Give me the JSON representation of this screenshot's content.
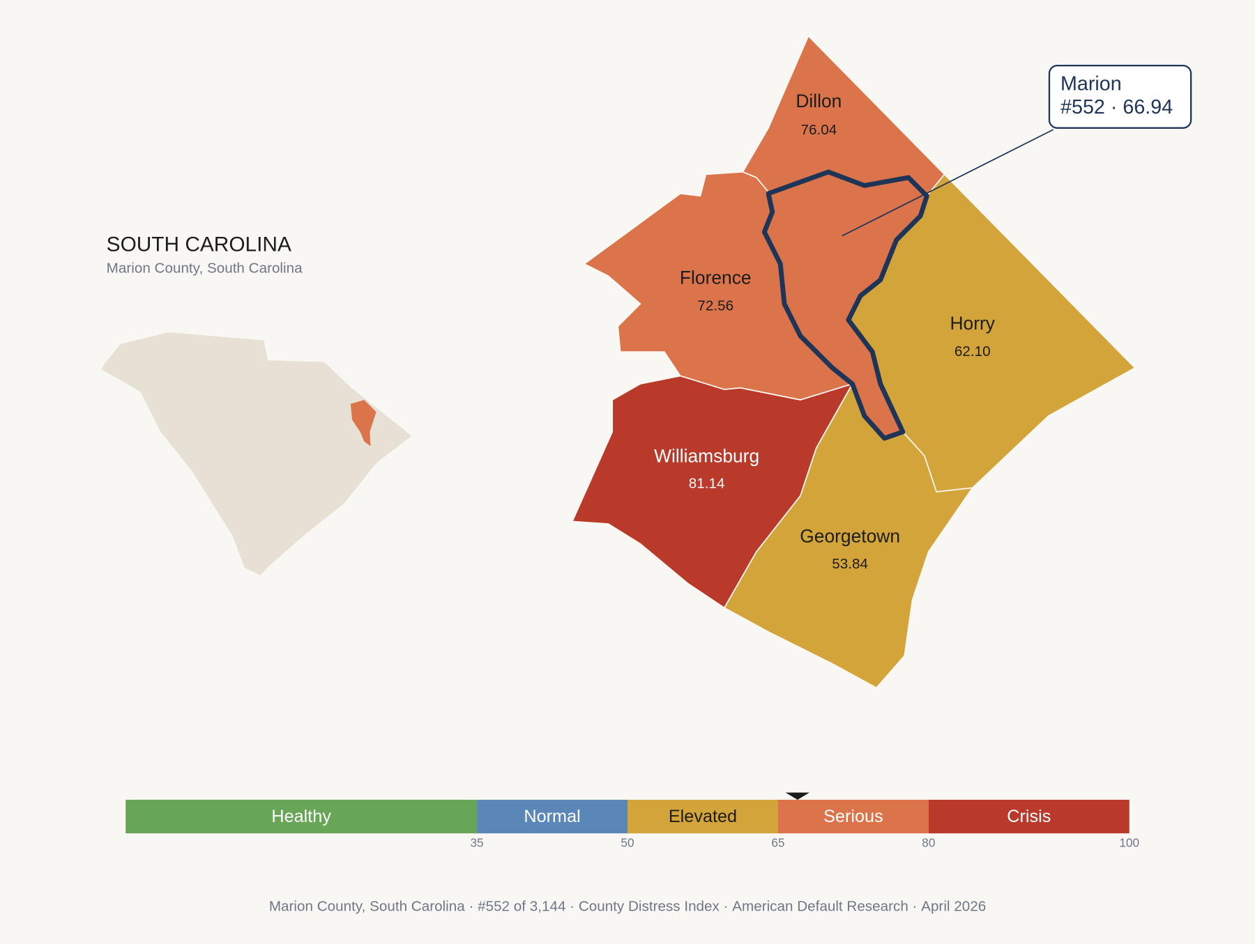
{
  "header": {
    "title": "SOUTH CAROLINA",
    "subtitle": "Marion County, South Carolina"
  },
  "counties": [
    {
      "name": "Dillon",
      "value": "76.04"
    },
    {
      "name": "Florence",
      "value": "72.56"
    },
    {
      "name": "Horry",
      "value": "62.10"
    },
    {
      "name": "Williamsburg",
      "value": "81.14"
    },
    {
      "name": "Georgetown",
      "value": "53.84"
    }
  ],
  "callout": {
    "name": "Marion",
    "rank": "#552",
    "separator": "·",
    "score": 66.94
  },
  "scale": {
    "xlim": [
      0,
      100
    ],
    "xticks": [
      35,
      50,
      65,
      80,
      100
    ],
    "bands": [
      {
        "label": "Healthy",
        "color": "#67a557"
      },
      {
        "label": "Normal",
        "color": "#5b87b8"
      },
      {
        "label": "Elevated",
        "color": "#d3a43a"
      },
      {
        "label": "Serious",
        "color": "#dc744b"
      },
      {
        "label": "Crisis",
        "color": "#b93a2b"
      }
    ]
  },
  "footer": {
    "separator": "·",
    "parts": [
      "Marion County, South Carolina",
      "#552 of 3,144",
      "County Distress Index",
      "American Default Research",
      "April 2026"
    ]
  }
}
